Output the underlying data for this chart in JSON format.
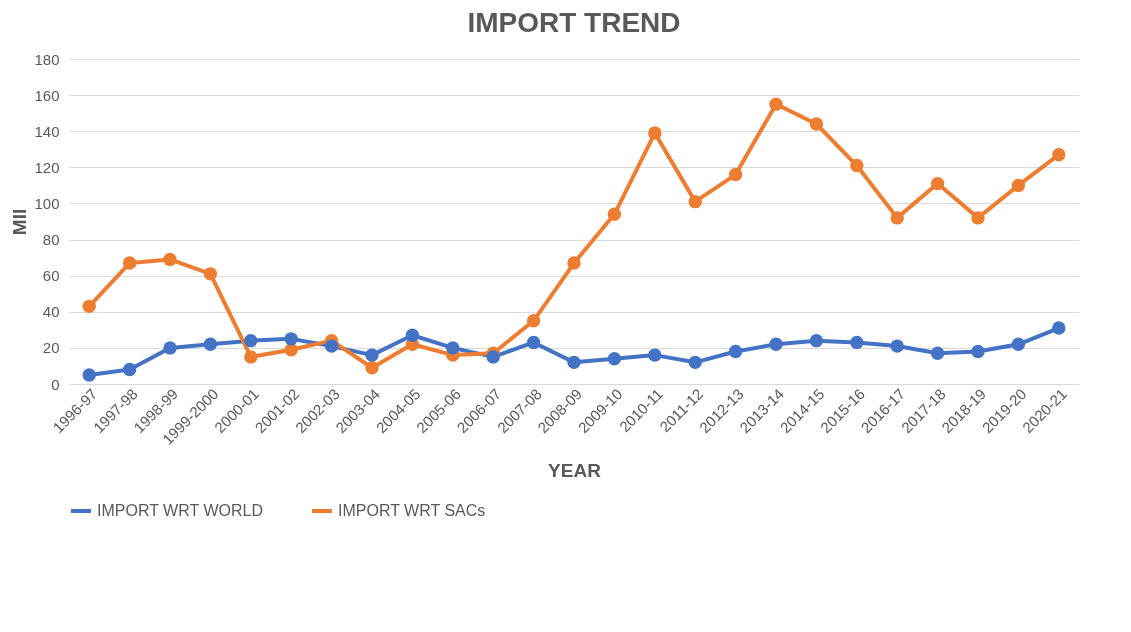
{
  "chart_data": {
    "type": "line",
    "title": "IMPORT TREND",
    "xlabel": "YEAR",
    "ylabel": "MII",
    "categories": [
      "1996-97",
      "1997-98",
      "1998-99",
      "1999-2000",
      "2000-01",
      "2001-02",
      "2002-03",
      "2003-04",
      "2004-05",
      "2005-06",
      "2006-07",
      "2007-08",
      "2008-09",
      "2009-10",
      "2010-11",
      "2011-12",
      "2012-13",
      "2013-14",
      "2014-15",
      "2015-16",
      "2016-17",
      "2017-18",
      "2018-19",
      "2019-20",
      "2020-21"
    ],
    "series": [
      {
        "name": "IMPORT WRT WORLD",
        "color": "#4472c4",
        "values": [
          5,
          8,
          20,
          22,
          24,
          25,
          21,
          16,
          27,
          20,
          15,
          23,
          12,
          14,
          16,
          12,
          18,
          22,
          24,
          23,
          21,
          17,
          18,
          22,
          31
        ]
      },
      {
        "name": "IMPORT WRT SACs",
        "color": "#ed7d31",
        "values": [
          43,
          67,
          69,
          61,
          15,
          19,
          24,
          9,
          22,
          16,
          17,
          35,
          67,
          94,
          139,
          101,
          116,
          155,
          144,
          121,
          92,
          111,
          92,
          110,
          127
        ]
      }
    ],
    "ylim": [
      0,
      180
    ],
    "yticks": [
      0,
      20,
      40,
      60,
      80,
      100,
      120,
      140,
      160,
      180
    ],
    "grid": "y",
    "legend": "bottom",
    "marker": "circle",
    "line_style": "solid"
  }
}
